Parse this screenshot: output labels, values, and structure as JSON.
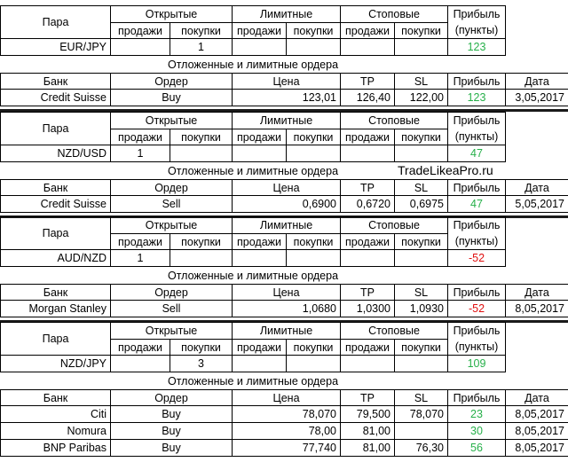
{
  "headers": {
    "pair": "Пара",
    "open": "Открытые",
    "limit": "Лимитные",
    "stop": "Стоповые",
    "profit": "Прибыль",
    "sell": "продажи",
    "buy": "покупки",
    "points": "(пункты)",
    "pending": "Отложенные и лимитные ордера",
    "bank": "Банк",
    "order": "Ордер",
    "price": "Цена",
    "tp": "TP",
    "sl": "SL",
    "date": "Дата"
  },
  "watermark": "TradeLikeaPro.ru",
  "blocks": [
    {
      "pair": "EUR/JPY",
      "open_sell": "",
      "open_buy": "1",
      "profit": "123",
      "profit_color": "#27b04a",
      "orders": [
        {
          "bank": "Credit Suisse",
          "order": "Buy",
          "price": "123,01",
          "tp": "126,40",
          "sl": "122,00",
          "profit": "123",
          "date": "3,05,2017"
        }
      ]
    },
    {
      "pair": "NZD/USD",
      "open_sell": "1",
      "open_buy": "",
      "profit": "47",
      "profit_color": "#27b04a",
      "orders": [
        {
          "bank": "Credit Suisse",
          "order": "Sell",
          "price": "0,6900",
          "tp": "0,6720",
          "sl": "0,6975",
          "profit": "47",
          "date": "5,05,2017"
        }
      ]
    },
    {
      "pair": "AUD/NZD",
      "open_sell": "1",
      "open_buy": "",
      "profit": "-52",
      "profit_color": "#e01010",
      "orders": [
        {
          "bank": "Morgan Stanley",
          "order": "Sell",
          "price": "1,0680",
          "tp": "1,0300",
          "sl": "1,0930",
          "profit": "-52",
          "date": "8,05,2017"
        }
      ]
    },
    {
      "pair": "NZD/JPY",
      "open_sell": "",
      "open_buy": "3",
      "profit": "109",
      "profit_color": "#27b04a",
      "orders": [
        {
          "bank": "Citi",
          "order": "Buy",
          "price": "78,070",
          "tp": "79,500",
          "sl": "78,070",
          "profit": "23",
          "date": "8,05,2017"
        },
        {
          "bank": "Nomura",
          "order": "Buy",
          "price": "78,00",
          "tp": "81,00",
          "sl": "",
          "profit": "30",
          "date": "8,05,2017"
        },
        {
          "bank": "BNP Paribas",
          "order": "Buy",
          "price": "77,740",
          "tp": "81,00",
          "sl": "76,30",
          "profit": "56",
          "date": "8,05,2017"
        }
      ]
    }
  ]
}
